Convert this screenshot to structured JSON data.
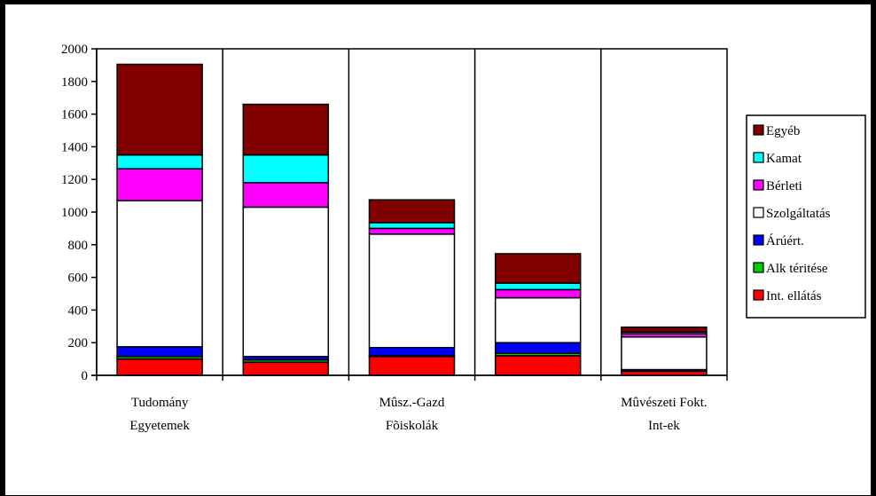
{
  "chart_data": {
    "type": "bar",
    "stacked": true,
    "categories": [
      [
        "Tudomány",
        "Egyetemek"
      ],
      [
        "",
        ""
      ],
      [
        "Mûsz.-Gazd",
        "Fõiskolák"
      ],
      [
        "",
        ""
      ],
      [
        "Mûvészeti Fokt.",
        "Int-ek"
      ]
    ],
    "ylim": [
      0,
      2000
    ],
    "yticks": [
      0,
      200,
      400,
      600,
      800,
      1000,
      1200,
      1400,
      1600,
      1800,
      2000
    ],
    "grid": "vertical",
    "legend": "right",
    "series": [
      {
        "name": "Int. ellátás",
        "color": "#ff0000",
        "values": [
          100,
          80,
          115,
          120,
          25
        ]
      },
      {
        "name": "Alk téritése",
        "color": "#00cc00",
        "values": [
          15,
          15,
          5,
          15,
          0
        ]
      },
      {
        "name": "Árúért.",
        "color": "#0000ff",
        "values": [
          60,
          20,
          50,
          65,
          10
        ]
      },
      {
        "name": "Szolgáltatás",
        "color": "#ffffff",
        "values": [
          895,
          915,
          695,
          275,
          200
        ]
      },
      {
        "name": "Bérleti",
        "color": "#ff00ff",
        "values": [
          195,
          150,
          35,
          50,
          20
        ]
      },
      {
        "name": "Kamat",
        "color": "#00ffff",
        "values": [
          85,
          170,
          35,
          40,
          10
        ]
      },
      {
        "name": "Egyéb",
        "color": "#800000",
        "values": [
          555,
          310,
          140,
          180,
          30
        ]
      }
    ]
  }
}
